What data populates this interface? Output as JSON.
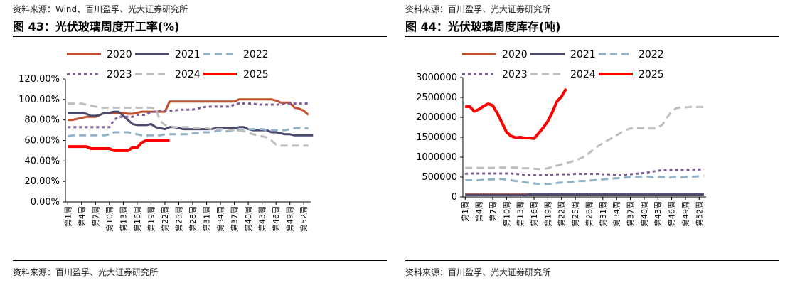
{
  "panels": [
    {
      "source_top": "资料来源：Wind、百川盈孚、光大证券研究所",
      "title": "图 43：光伏玻璃周度开工率(%)",
      "source_bottom": "资料来源：百川盈孚、光大证券研究所"
    },
    {
      "source_top": "资料来源：百川盈孚、光大证券研究所",
      "title": "图 44：光伏玻璃周度库存(吨)",
      "source_bottom": "资料来源：百川盈孚、光大证券研究所"
    }
  ],
  "chart_data": [
    {
      "type": "line",
      "title": "",
      "ylim": [
        0,
        120
      ],
      "y_ticks": [
        0,
        20,
        40,
        60,
        80,
        100,
        120
      ],
      "y_tick_labels": [
        "0.00%",
        "20.00%",
        "40.00%",
        "60.00%",
        "80.00%",
        "100.00%",
        "120.00%"
      ],
      "x_tick_labels": [
        "第1周",
        "第4周",
        "第7周",
        "第10周",
        "第13周",
        "第16周",
        "第19周",
        "第22周",
        "第25周",
        "第28周",
        "第31周",
        "第34周",
        "第37周",
        "第40周",
        "第43周",
        "第46周",
        "第49周",
        "第52周"
      ],
      "grid": false,
      "legend_position": "top",
      "series": [
        {
          "name": "2020",
          "color": "#C0502B",
          "dash": "solid",
          "width": 3,
          "values": [
            80,
            80,
            81,
            82,
            83,
            83,
            83,
            85,
            87,
            87,
            87,
            87,
            87,
            86,
            86,
            87,
            88,
            88,
            88,
            88,
            88,
            88,
            98,
            98,
            98,
            98,
            98,
            98,
            98,
            98,
            98,
            98,
            98,
            98,
            98,
            98,
            98,
            100,
            100,
            100,
            100,
            100,
            100,
            100,
            100,
            99,
            97,
            97,
            97,
            92,
            91,
            89,
            85
          ]
        },
        {
          "name": "2021",
          "color": "#4A4A6E",
          "dash": "solid",
          "width": 3,
          "values": [
            87,
            87,
            87,
            87,
            86,
            84,
            84,
            85,
            87,
            87,
            88,
            88,
            84,
            80,
            76,
            75,
            75,
            75,
            76,
            73,
            72,
            71,
            73,
            73,
            72,
            71,
            71,
            71,
            71,
            71,
            71,
            71,
            72,
            72,
            72,
            72,
            72,
            73,
            73,
            71,
            70,
            70,
            70,
            70,
            68,
            68,
            67,
            66,
            66,
            65,
            65,
            65,
            65,
            65
          ]
        },
        {
          "name": "2022",
          "color": "#8FB4C9",
          "dash": "10,6",
          "width": 3,
          "values": [
            64,
            65,
            65,
            65,
            65,
            65,
            65,
            65,
            65,
            66,
            68,
            68,
            68,
            68,
            67,
            66,
            65,
            65,
            65,
            65,
            65,
            66,
            66,
            66,
            66,
            66,
            66,
            67,
            67,
            68,
            68,
            68,
            69,
            69,
            69,
            69,
            70,
            70,
            70,
            71,
            71,
            71,
            71,
            70,
            70,
            70,
            70,
            70,
            71,
            72,
            72,
            72,
            72
          ]
        },
        {
          "name": "2023",
          "color": "#7E5A9B",
          "dash": "4,4",
          "width": 3,
          "values": [
            73,
            73,
            73,
            73,
            73,
            73,
            73,
            73,
            73,
            73,
            80,
            83,
            83,
            83,
            83,
            85,
            85,
            85,
            88,
            88,
            89,
            89,
            89,
            89,
            90,
            90,
            90,
            90,
            91,
            92,
            93,
            93,
            93,
            93,
            93,
            93,
            95,
            96,
            96,
            96,
            96,
            95,
            95,
            95,
            95,
            95,
            95,
            96,
            96,
            96,
            96,
            96,
            96
          ]
        },
        {
          "name": "2024",
          "color": "#BFBFBF",
          "dash": "10,6",
          "width": 3,
          "values": [
            96,
            96,
            96,
            96,
            95,
            94,
            93,
            92,
            92,
            92,
            92,
            92,
            92,
            92,
            92,
            92,
            92,
            92,
            92,
            91,
            79,
            75,
            74,
            73,
            73,
            73,
            73,
            72,
            72,
            72,
            72,
            71,
            71,
            71,
            71,
            70,
            70,
            70,
            69,
            68,
            66,
            65,
            64,
            63,
            60,
            56,
            55,
            55,
            55,
            55,
            55,
            55,
            55
          ]
        },
        {
          "name": "2025",
          "color": "#FF0000",
          "dash": "solid",
          "width": 4,
          "values": [
            54,
            54,
            54,
            54,
            54,
            52,
            52,
            52,
            52,
            52,
            50,
            50,
            50,
            50,
            53,
            53,
            58,
            60,
            60,
            60,
            60,
            60,
            60
          ]
        }
      ]
    },
    {
      "type": "line",
      "title": "",
      "ylim": [
        0,
        3000000
      ],
      "y_ticks": [
        0,
        500000,
        1000000,
        1500000,
        2000000,
        2500000,
        3000000
      ],
      "y_tick_labels": [
        "0",
        "500000",
        "1000000",
        "1500000",
        "2000000",
        "2500000",
        "3000000"
      ],
      "x_tick_labels": [
        "第1周",
        "第4周",
        "第7周",
        "第10周",
        "第13周",
        "第16周",
        "第19周",
        "第22周",
        "第25周",
        "第28周",
        "第31周",
        "第34周",
        "第37周",
        "第40周",
        "第43周",
        "第46周",
        "第49周",
        "第52周"
      ],
      "grid": false,
      "legend_position": "top",
      "series": [
        {
          "name": "2020",
          "color": "#C0502B",
          "dash": "solid",
          "width": 3,
          "values": [
            60000,
            60000,
            60000,
            60000,
            60000,
            60000,
            60000,
            60000,
            60000,
            60000,
            60000,
            60000,
            60000,
            60000,
            60000,
            60000,
            60000,
            60000,
            60000,
            60000,
            60000,
            60000,
            60000,
            60000,
            60000,
            60000,
            60000,
            60000,
            60000,
            60000,
            60000,
            60000,
            60000,
            60000,
            60000,
            60000,
            60000,
            60000,
            60000,
            60000,
            60000,
            60000,
            60000,
            60000,
            60000,
            60000,
            60000,
            60000,
            60000,
            60000,
            60000,
            60000,
            60000
          ]
        },
        {
          "name": "2021",
          "color": "#4A4A6E",
          "dash": "solid",
          "width": 3,
          "values": [
            50000,
            50000,
            50000,
            50000,
            50000,
            50000,
            50000,
            50000,
            50000,
            50000,
            50000,
            50000,
            50000,
            50000,
            60000,
            60000,
            60000,
            60000,
            60000,
            60000,
            60000,
            60000,
            60000,
            60000,
            60000,
            60000,
            60000,
            60000,
            60000,
            60000,
            60000,
            60000,
            60000,
            60000,
            60000,
            60000,
            60000,
            60000,
            60000,
            60000,
            60000,
            60000,
            60000,
            60000,
            60000,
            60000,
            60000,
            60000,
            60000,
            60000,
            60000,
            60000,
            60000
          ]
        },
        {
          "name": "2022",
          "color": "#8FB4C9",
          "dash": "10,6",
          "width": 3,
          "values": [
            420000,
            420000,
            420000,
            420000,
            430000,
            440000,
            440000,
            450000,
            450000,
            430000,
            420000,
            400000,
            390000,
            370000,
            350000,
            340000,
            330000,
            330000,
            330000,
            330000,
            350000,
            360000,
            370000,
            380000,
            390000,
            400000,
            400000,
            410000,
            420000,
            430000,
            440000,
            450000,
            460000,
            470000,
            480000,
            490000,
            500000,
            500000,
            510000,
            510000,
            510000,
            500000,
            500000,
            500000,
            490000,
            490000,
            490000,
            490000,
            500000,
            500000,
            510000,
            520000,
            530000
          ]
        },
        {
          "name": "2023",
          "color": "#7E5A9B",
          "dash": "4,4",
          "width": 3,
          "values": [
            580000,
            590000,
            590000,
            590000,
            590000,
            590000,
            590000,
            590000,
            590000,
            590000,
            590000,
            580000,
            570000,
            560000,
            550000,
            550000,
            550000,
            550000,
            560000,
            560000,
            570000,
            570000,
            570000,
            570000,
            580000,
            580000,
            580000,
            580000,
            580000,
            580000,
            570000,
            570000,
            560000,
            560000,
            560000,
            560000,
            570000,
            580000,
            590000,
            600000,
            620000,
            640000,
            660000,
            670000,
            680000,
            680000,
            680000,
            680000,
            680000,
            690000,
            690000,
            690000,
            700000
          ]
        },
        {
          "name": "2024",
          "color": "#BFBFBF",
          "dash": "10,6",
          "width": 3,
          "values": [
            730000,
            730000,
            730000,
            730000,
            730000,
            730000,
            730000,
            740000,
            740000,
            740000,
            740000,
            740000,
            730000,
            720000,
            720000,
            710000,
            700000,
            700000,
            720000,
            760000,
            790000,
            820000,
            850000,
            880000,
            920000,
            960000,
            1020000,
            1100000,
            1200000,
            1280000,
            1350000,
            1420000,
            1480000,
            1550000,
            1620000,
            1680000,
            1720000,
            1740000,
            1740000,
            1730000,
            1720000,
            1720000,
            1740000,
            1820000,
            2000000,
            2150000,
            2230000,
            2250000,
            2250000,
            2260000,
            2260000,
            2260000,
            2260000
          ]
        },
        {
          "name": "2025",
          "color": "#FF0000",
          "dash": "solid",
          "width": 4,
          "values": [
            2270000,
            2270000,
            2150000,
            2200000,
            2280000,
            2340000,
            2300000,
            2100000,
            1870000,
            1630000,
            1530000,
            1490000,
            1500000,
            1480000,
            1480000,
            1470000,
            1600000,
            1740000,
            1900000,
            2130000,
            2400000,
            2520000,
            2720000
          ]
        }
      ]
    }
  ]
}
